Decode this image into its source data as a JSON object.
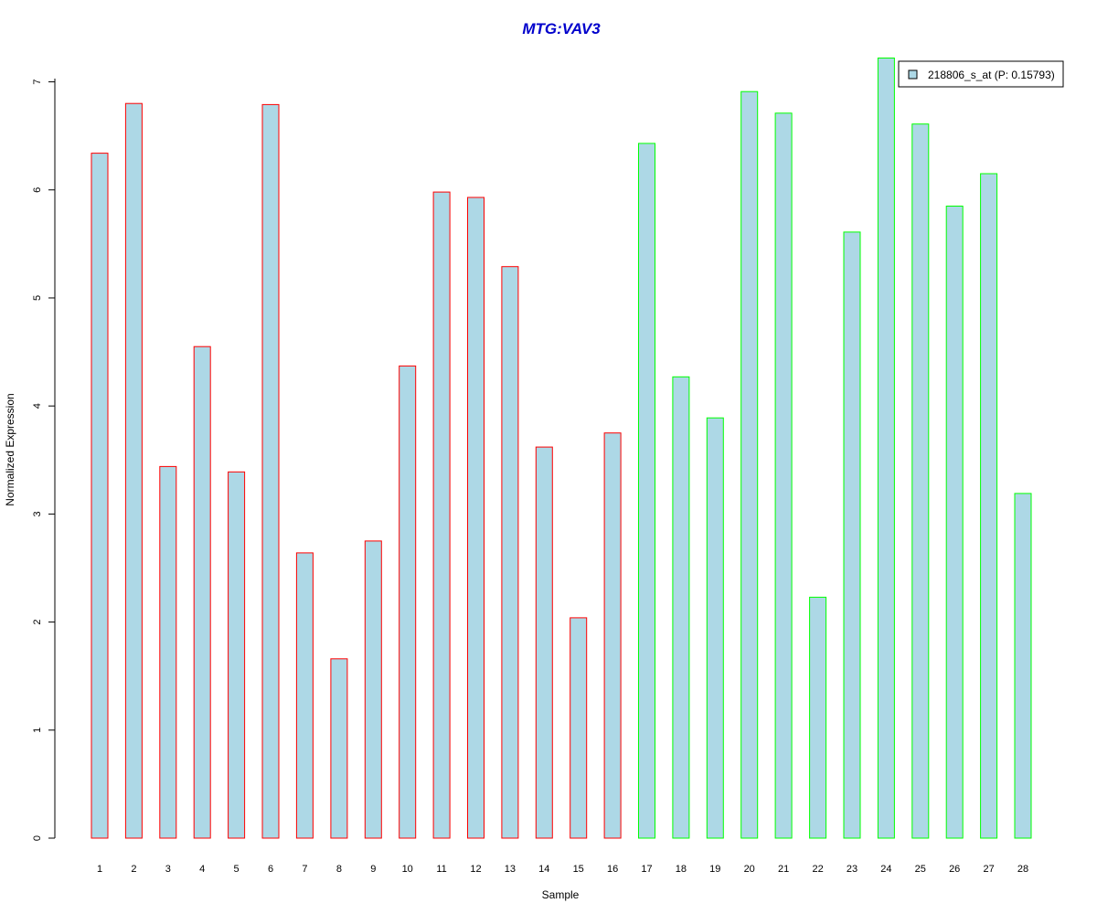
{
  "chart_data": {
    "type": "bar",
    "title": "MTG:VAV3",
    "title_color": "#0000CC",
    "xlabel": "Sample",
    "ylabel": "Normalized Expression",
    "ylim": [
      0,
      7.25
    ],
    "yticks": [
      0,
      1,
      2,
      3,
      4,
      5,
      6,
      7
    ],
    "grid": false,
    "legend_position": "top-right",
    "fill_color": "#ADD8E6",
    "categories": [
      "1",
      "2",
      "3",
      "4",
      "5",
      "6",
      "7",
      "8",
      "9",
      "10",
      "11",
      "12",
      "13",
      "14",
      "15",
      "16",
      "17",
      "18",
      "19",
      "20",
      "21",
      "22",
      "23",
      "24",
      "25",
      "26",
      "27",
      "28"
    ],
    "series": [
      {
        "name": "218806_s_at (P: 0.15793)",
        "values": [
          6.34,
          6.8,
          3.44,
          4.55,
          3.39,
          6.79,
          2.64,
          1.66,
          2.75,
          4.37,
          5.98,
          5.93,
          5.29,
          3.62,
          2.04,
          3.75,
          6.43,
          4.27,
          3.89,
          6.91,
          6.71,
          2.23,
          5.61,
          7.22,
          6.61,
          5.85,
          6.15,
          3.19
        ]
      }
    ],
    "border_colors": [
      "#FF0000",
      "#FF0000",
      "#FF0000",
      "#FF0000",
      "#FF0000",
      "#FF0000",
      "#FF0000",
      "#FF0000",
      "#FF0000",
      "#FF0000",
      "#FF0000",
      "#FF0000",
      "#FF0000",
      "#FF0000",
      "#FF0000",
      "#FF0000",
      "#00FF00",
      "#00FF00",
      "#00FF00",
      "#00FF00",
      "#00FF00",
      "#00FF00",
      "#00FF00",
      "#00FF00",
      "#00FF00",
      "#00FF00",
      "#00FF00",
      "#00FF00"
    ]
  }
}
